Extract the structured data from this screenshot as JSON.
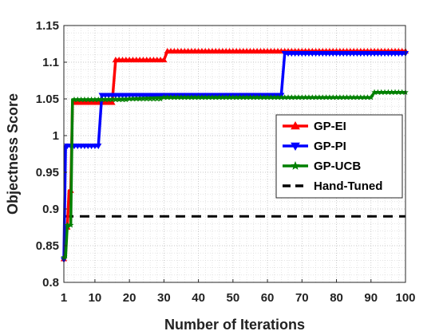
{
  "chart_data": {
    "type": "line",
    "xlabel": "Number of Iterations",
    "ylabel": "Objectness Score",
    "xlim": [
      1,
      100
    ],
    "ylim": [
      0.8,
      1.15
    ],
    "x_ticks": [
      1,
      10,
      20,
      30,
      40,
      50,
      60,
      70,
      80,
      90,
      100
    ],
    "y_ticks": [
      0.8,
      0.85,
      0.9,
      0.95,
      1,
      1.05,
      1.1,
      1.15
    ],
    "grid": true,
    "minor_grid": true,
    "legend_position": "right",
    "series": [
      {
        "name": "GP-EI",
        "color": "#ff0000",
        "marker": "triangle-up",
        "points": [
          [
            1,
            0.832
          ],
          [
            1.5,
            0.875
          ],
          [
            2,
            0.875
          ],
          [
            2.5,
            0.925
          ],
          [
            3,
            0.925
          ],
          [
            3.5,
            1.045
          ],
          [
            15,
            1.045
          ],
          [
            16,
            1.103
          ],
          [
            30,
            1.103
          ],
          [
            31,
            1.115
          ],
          [
            100,
            1.115
          ]
        ]
      },
      {
        "name": "GP-PI",
        "color": "#0000ff",
        "marker": "triangle-down",
        "points": [
          [
            1,
            0.831
          ],
          [
            1.5,
            0.986
          ],
          [
            11,
            0.986
          ],
          [
            12,
            1.055
          ],
          [
            64,
            1.055
          ],
          [
            65,
            1.112
          ],
          [
            100,
            1.112
          ]
        ]
      },
      {
        "name": "GP-UCB",
        "color": "#008000",
        "marker": "star",
        "points": [
          [
            1,
            0.834
          ],
          [
            1.5,
            0.834
          ],
          [
            2,
            0.878
          ],
          [
            3,
            0.878
          ],
          [
            3.5,
            1.049
          ],
          [
            10,
            1.049
          ],
          [
            20,
            1.05
          ],
          [
            30,
            1.052
          ],
          [
            50,
            1.052
          ],
          [
            70,
            1.052
          ],
          [
            90,
            1.052
          ],
          [
            91,
            1.059
          ],
          [
            100,
            1.059
          ]
        ]
      },
      {
        "name": "Hand-Tuned",
        "color": "#000000",
        "dash": true,
        "points": [
          [
            1,
            0.89
          ],
          [
            100,
            0.89
          ]
        ]
      }
    ]
  }
}
